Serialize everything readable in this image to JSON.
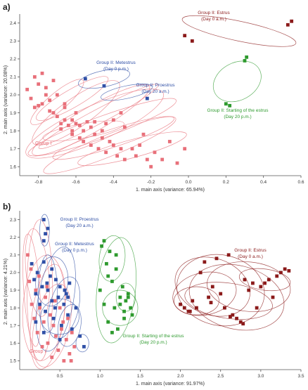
{
  "chart_data": [
    {
      "panel_label": "a)",
      "type": "scatter",
      "xlabel": "1. main axis (variance: 65.94%)",
      "ylabel": "2. main axis (variance: 20.08%)",
      "xlim": [
        -0.9,
        0.6
      ],
      "ylim": [
        1.55,
        2.45
      ],
      "xticks": [
        -0.8,
        -0.6,
        -0.4,
        -0.2,
        0.0,
        0.2,
        0.4,
        0.6
      ],
      "xtick_labels": [
        "-0.8",
        "-0.6",
        "-0.4",
        "-0.2",
        "0.0",
        "0.2",
        "0.4",
        "0.6"
      ],
      "yticks": [
        1.6,
        1.7,
        1.8,
        1.9,
        2.0,
        2.1,
        2.2,
        2.3,
        2.4
      ],
      "ytick_labels": [
        "1.6",
        "1.7",
        "1.8",
        "1.9",
        "2.0",
        "2.1",
        "2.2",
        "2.3",
        "2.4"
      ],
      "grid": false,
      "series": [
        {
          "name": "Group I",
          "color": "#e8707a",
          "x": [
            -0.86,
            -0.84,
            -0.82,
            -0.82,
            -0.8,
            -0.78,
            -0.78,
            -0.76,
            -0.74,
            -0.72,
            -0.72,
            -0.7,
            -0.68,
            -0.66,
            -0.66,
            -0.64,
            -0.62,
            -0.62,
            -0.6,
            -0.58,
            -0.56,
            -0.56,
            -0.54,
            -0.52,
            -0.5,
            -0.48,
            -0.46,
            -0.44,
            -0.42,
            -0.4,
            -0.38,
            -0.36,
            -0.34,
            -0.3,
            -0.28,
            -0.26,
            -0.22,
            -0.2,
            -0.18,
            -0.14,
            -0.1,
            -0.06,
            -0.02,
            -0.76,
            -0.7,
            -0.66,
            -0.6,
            -0.52,
            -0.46,
            -0.4,
            -0.34,
            -0.24,
            -0.8,
            -0.74,
            -0.68,
            -0.62,
            -0.58,
            -0.5,
            -0.44,
            -0.36
          ],
          "y": [
            2.03,
            1.98,
            2.1,
            1.93,
            2.06,
            1.95,
            2.12,
            2.0,
            1.97,
            2.08,
            1.9,
            1.88,
            1.84,
            1.86,
            1.93,
            1.83,
            1.78,
            1.86,
            1.84,
            1.76,
            1.8,
            1.74,
            1.85,
            1.72,
            1.78,
            1.7,
            1.76,
            1.68,
            1.74,
            1.72,
            1.66,
            1.7,
            1.64,
            1.7,
            1.66,
            1.72,
            1.64,
            1.6,
            1.68,
            1.64,
            1.74,
            1.62,
            1.7,
            2.04,
            2.0,
            1.95,
            1.9,
            1.82,
            1.8,
            1.86,
            1.82,
            1.78,
            1.94,
            1.91,
            1.81,
            1.8,
            1.83,
            1.85,
            1.84,
            1.9
          ]
        },
        {
          "name": "Group II: Metestrus",
          "color": "#2f4fa6",
          "x": [
            -0.55
          ],
          "y": [
            2.09
          ]
        },
        {
          "name": "Group II: Proestrus",
          "color": "#2f4fa6",
          "x": [
            -0.45,
            -0.22
          ],
          "y": [
            2.05,
            1.98
          ]
        },
        {
          "name": "Group II: Estrus",
          "color": "#8b1a1a",
          "x": [
            -0.02,
            0.02,
            0.53,
            0.55
          ],
          "y": [
            2.33,
            2.3,
            2.39,
            2.41
          ]
        },
        {
          "name": "Group II: Starting of the estrus",
          "color": "#2e9a2e",
          "x": [
            0.2,
            0.22,
            0.3,
            0.31
          ],
          "y": [
            1.95,
            1.94,
            2.19,
            2.21
          ]
        }
      ],
      "annotations": [
        {
          "text": "Group I",
          "color": "#e8707a"
        },
        {
          "line1": "Group II: Metestrus",
          "line2": "(Day 0 p.m.)",
          "color": "#2f4fa6"
        },
        {
          "line1": "Group II: Proestrus",
          "line2": "(Day 20 a.m.)",
          "color": "#2f4fa6"
        },
        {
          "line1": "Group II: Estrus",
          "line2": "(Day 0 a.m.)",
          "color": "#8b1a1a"
        },
        {
          "line1": "Group II: Starting of the estrus",
          "line2": "(Day 20 p.m.)",
          "color": "#2e9a2e"
        }
      ]
    },
    {
      "panel_label": "b)",
      "type": "scatter",
      "xlabel": "1. main axis (variance: 91.97%)",
      "ylabel": "2. main axis (variance: 4.21%)",
      "xlim": [
        0.0,
        3.5
      ],
      "ylim": [
        1.45,
        2.35
      ],
      "xticks": [
        0.5,
        1.0,
        1.5,
        2.0,
        2.5,
        3.0,
        3.5
      ],
      "xtick_labels": [
        "0.5",
        "1.0",
        "1.5",
        "2.0",
        "2.5",
        "3.0",
        "3.5"
      ],
      "yticks": [
        1.5,
        1.6,
        1.7,
        1.8,
        1.9,
        2.0,
        2.1,
        2.2,
        2.3
      ],
      "ytick_labels": [
        "1.5",
        "1.6",
        "1.7",
        "1.8",
        "1.9",
        "2.0",
        "2.1",
        "2.2",
        "2.3"
      ],
      "grid": false,
      "series": [
        {
          "name": "Group I",
          "color": "#e8707a",
          "x": [
            0.1,
            0.12,
            0.15,
            0.18,
            0.2,
            0.22,
            0.25,
            0.28,
            0.3,
            0.32,
            0.35,
            0.38,
            0.4,
            0.42,
            0.45,
            0.48,
            0.5,
            0.52,
            0.55,
            0.58,
            0.6,
            0.62,
            0.65,
            0.68,
            0.14,
            0.24,
            0.34,
            0.44,
            0.54,
            0.64
          ],
          "y": [
            2.1,
            1.95,
            1.82,
            1.74,
            1.9,
            1.66,
            1.8,
            1.58,
            1.72,
            1.86,
            1.6,
            1.76,
            1.52,
            1.7,
            1.64,
            1.56,
            1.8,
            1.68,
            1.5,
            1.62,
            1.74,
            1.54,
            1.66,
            1.58,
            2.02,
            1.98,
            1.92,
            1.84,
            1.72,
            1.5
          ]
        },
        {
          "name": "Group II: Metestrus",
          "color": "#2f4fa6",
          "x": [
            0.15,
            0.18,
            0.2,
            0.22,
            0.25,
            0.28,
            0.3,
            0.32,
            0.35,
            0.38,
            0.4,
            0.42,
            0.45,
            0.48,
            0.5,
            0.52,
            0.55,
            0.58,
            0.6,
            0.62,
            0.65,
            0.7,
            0.75,
            0.8,
            0.2,
            0.3,
            0.4,
            0.5,
            0.6,
            0.34,
            0.44,
            0.56
          ],
          "y": [
            2.05,
            1.96,
            1.88,
            2.0,
            1.82,
            1.92,
            2.06,
            1.78,
            1.9,
            1.98,
            1.84,
            1.74,
            1.96,
            1.86,
            1.92,
            1.7,
            1.82,
            1.88,
            1.76,
            1.94,
            1.68,
            1.8,
            1.64,
            1.58,
            1.72,
            1.66,
            2.02,
            1.62,
            1.86,
            1.94,
            1.8,
            1.9
          ]
        },
        {
          "name": "Group II: Proestrus",
          "color": "#2f4fa6",
          "x": [
            0.3,
            0.32,
            0.35,
            0.3
          ],
          "y": [
            2.3,
            2.22,
            2.25,
            2.18
          ]
        },
        {
          "name": "Group II: Estrus",
          "color": "#8b1a1a",
          "x": [
            2.0,
            2.05,
            2.1,
            2.15,
            2.2,
            2.25,
            2.3,
            2.35,
            2.4,
            2.45,
            2.5,
            2.55,
            2.6,
            2.65,
            2.7,
            2.75,
            2.8,
            2.85,
            2.9,
            2.95,
            3.0,
            3.05,
            3.1,
            3.15,
            3.2,
            3.25,
            3.3,
            3.35,
            2.12,
            2.38,
            2.62,
            2.78
          ],
          "y": [
            1.82,
            1.8,
            1.78,
            1.84,
            1.8,
            2.0,
            2.06,
            1.86,
            1.92,
            2.08,
            1.88,
            1.8,
            2.1,
            1.76,
            1.74,
            1.72,
            1.96,
            1.9,
            1.94,
            1.8,
            1.92,
            1.94,
            1.96,
            1.86,
            1.98,
            2.0,
            2.02,
            2.01,
            1.78,
            1.83,
            1.75,
            1.71
          ]
        },
        {
          "name": "Group II: Starting of the estrus",
          "color": "#2e9a2e",
          "x": [
            1.0,
            1.02,
            1.05,
            1.08,
            1.1,
            1.12,
            1.15,
            1.18,
            1.2,
            1.22,
            1.25,
            1.28,
            1.3,
            1.32,
            1.35,
            1.38,
            1.4,
            1.1,
            1.2,
            1.3,
            1.05,
            1.15,
            1.25,
            1.35
          ],
          "y": [
            1.9,
            2.15,
            1.82,
            2.05,
            1.72,
            2.12,
            1.95,
            1.8,
            2.1,
            1.68,
            1.86,
            1.92,
            1.78,
            1.84,
            1.88,
            1.8,
            1.76,
            1.98,
            2.02,
            1.74,
            2.18,
            1.66,
            1.82,
            1.86
          ]
        }
      ],
      "annotations": [
        {
          "text": "Group I",
          "color": "#e8707a"
        },
        {
          "line1": "Group II: Proestrus",
          "line2": "(Day 20 a.m.)",
          "color": "#2f4fa6"
        },
        {
          "line1": "Group II: Metestrus",
          "line2": "(Day 0 p.m.)",
          "color": "#2f4fa6"
        },
        {
          "line1": "Group II: Estrus",
          "line2": "(Day 0 a.m.)",
          "color": "#8b1a1a"
        },
        {
          "line1": "Group II: Starting of the estrus",
          "line2": "(Day 20 p.m.)",
          "color": "#2e9a2e"
        }
      ]
    }
  ]
}
